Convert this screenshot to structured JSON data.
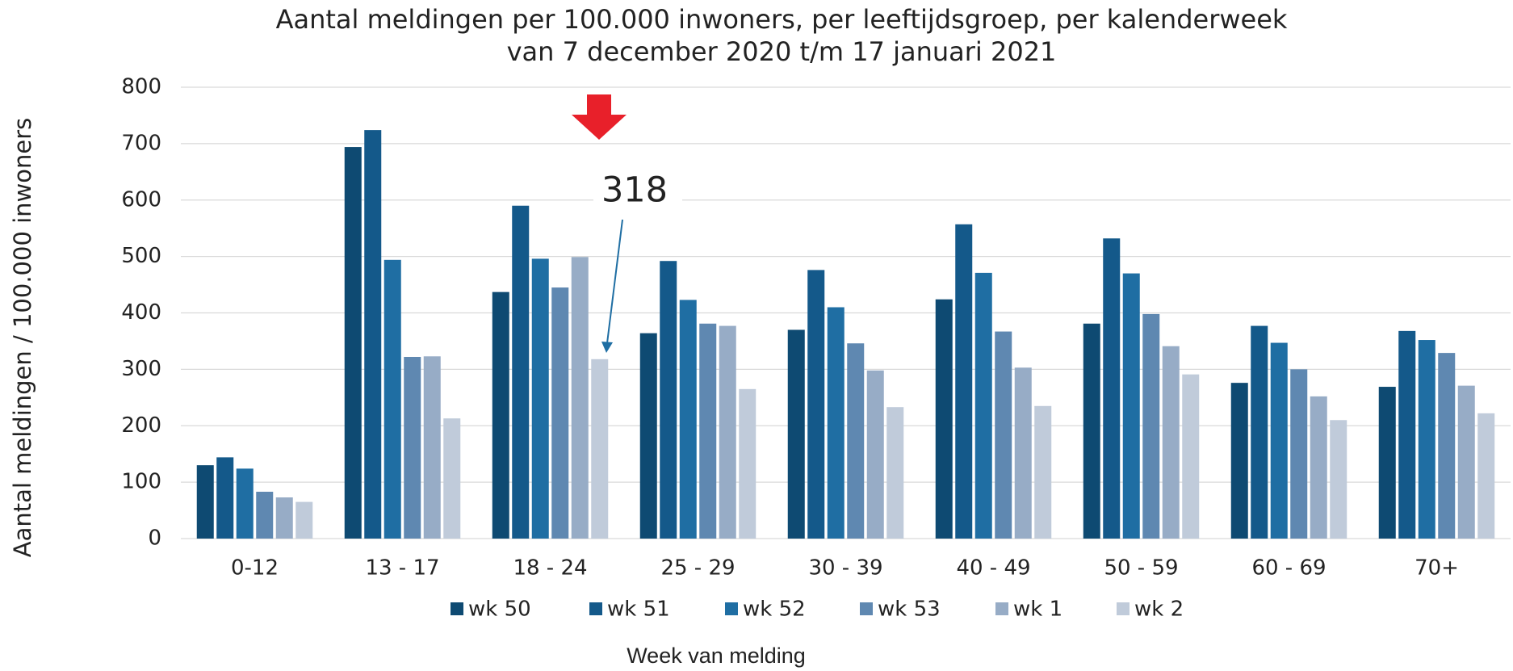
{
  "chart_data": {
    "type": "bar",
    "title": "Aantal meldingen per 100.000 inwoners, per leeftijdsgroep, per kalenderweek",
    "subtitle": "van 7 december 2020 t/m 17 januari 2021",
    "y_label": "Aantal meldingen / 100.000 inwoners",
    "x_label": "Week van melding",
    "annotation": "318",
    "categories": [
      "0-12",
      "13 - 17",
      "18 - 24",
      "25 - 29",
      "30 - 39",
      "40 - 49",
      "50 - 59",
      "60 - 69",
      "70+"
    ],
    "series": [
      {
        "name": "wk 50",
        "color": "#0e4a72",
        "values": [
          130,
          694,
          437,
          364,
          370,
          424,
          381,
          276,
          269
        ]
      },
      {
        "name": "wk 51",
        "color": "#14598a",
        "values": [
          144,
          724,
          590,
          492,
          476,
          557,
          532,
          377,
          368
        ]
      },
      {
        "name": "wk 52",
        "color": "#1f6ea3",
        "values": [
          124,
          494,
          496,
          423,
          410,
          471,
          470,
          347,
          352
        ]
      },
      {
        "name": "wk 53",
        "color": "#5f88b1",
        "values": [
          83,
          322,
          445,
          381,
          346,
          367,
          398,
          300,
          329
        ]
      },
      {
        "name": "wk 1",
        "color": "#97acc6",
        "values": [
          73,
          323,
          499,
          377,
          298,
          303,
          341,
          252,
          271
        ]
      },
      {
        "name": "wk 2",
        "color": "#c0cbda",
        "values": [
          65,
          213,
          318,
          265,
          233,
          235,
          291,
          210,
          222
        ]
      }
    ],
    "ylim": [
      0,
      800
    ],
    "yticks": [
      0,
      100,
      200,
      300,
      400,
      500,
      600,
      700,
      800
    ],
    "grid": true,
    "legend": "bottom"
  }
}
